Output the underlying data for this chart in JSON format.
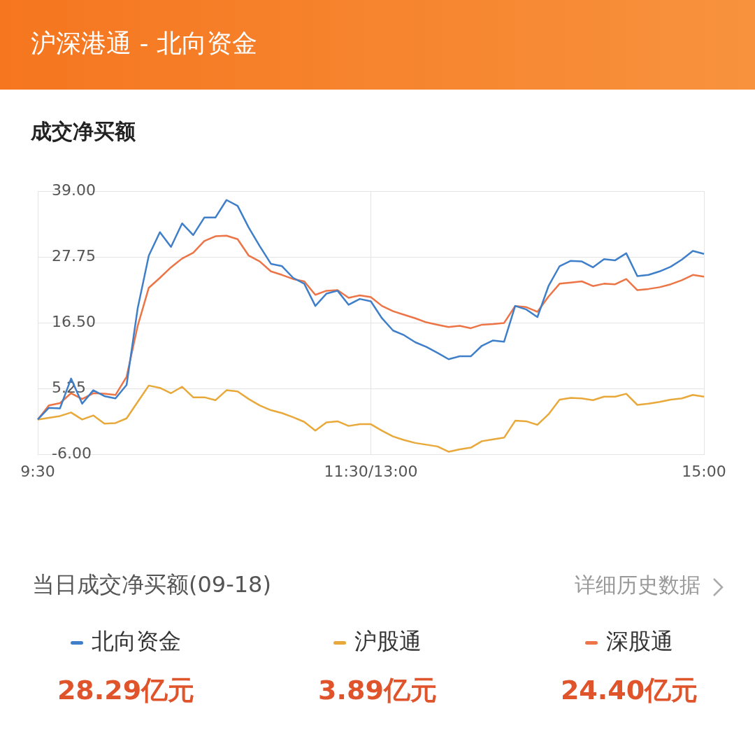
{
  "chart_data": {
    "type": "line",
    "title": "沪深港通 - 北向资金",
    "subtitle": "成交净买额",
    "annotations": [
      "当日成交净买额(09-18)",
      "详细历史数据",
      "28.29亿元",
      "3.89亿元",
      "24.40亿元"
    ],
    "categories": [
      "9:30",
      null,
      null,
      null,
      null,
      null,
      null,
      null,
      null,
      null,
      null,
      null,
      null,
      null,
      null,
      null,
      null,
      null,
      null,
      null,
      null,
      null,
      null,
      null,
      null,
      null,
      null,
      null,
      null,
      null,
      "11:30/13:00",
      null,
      null,
      null,
      null,
      null,
      null,
      null,
      null,
      null,
      null,
      null,
      null,
      null,
      null,
      null,
      null,
      null,
      null,
      null,
      null,
      null,
      null,
      null,
      null,
      null,
      null,
      null,
      null,
      null,
      "15:00"
    ],
    "ylim": [
      -6,
      39
    ],
    "yticks": [
      {
        "value": -6,
        "label": "-6.00"
      },
      {
        "value": 5.25,
        "label": "5.25"
      },
      {
        "value": 16.5,
        "label": "16.50"
      },
      {
        "value": 27.75,
        "label": "27.75"
      },
      {
        "value": 39,
        "label": "39.00"
      }
    ],
    "grid": true,
    "legend": "bottom",
    "line_style": "solid",
    "series": [
      {
        "name": "北向资金",
        "color": "#3f7fc9",
        "values": [
          0.0,
          2.0,
          1.9,
          7.0,
          2.7,
          5.0,
          4.0,
          3.6,
          5.9,
          19.0,
          28.0,
          32.0,
          29.5,
          33.5,
          31.5,
          34.5,
          34.5,
          37.5,
          36.5,
          32.8,
          29.6,
          26.6,
          26.2,
          24.2,
          23.2,
          19.4,
          21.5,
          22.0,
          19.6,
          20.6,
          20.2,
          17.3,
          15.2,
          14.4,
          13.2,
          12.4,
          11.4,
          10.3,
          10.8,
          10.8,
          12.6,
          13.5,
          13.3,
          19.4,
          18.8,
          17.5,
          22.8,
          26.2,
          27.1,
          27.0,
          26.0,
          27.4,
          27.2,
          28.4,
          24.5,
          24.7,
          25.3,
          26.1,
          27.3,
          28.8,
          28.3
        ]
      },
      {
        "name": "沪股通",
        "color": "#e8a93a",
        "values": [
          0.0,
          0.3,
          0.6,
          1.2,
          0.0,
          0.7,
          -0.7,
          -0.6,
          0.2,
          3.0,
          5.8,
          5.4,
          4.5,
          5.6,
          3.8,
          3.8,
          3.3,
          5.0,
          4.8,
          3.5,
          2.4,
          1.6,
          1.1,
          0.4,
          -0.4,
          -1.9,
          -0.5,
          -0.3,
          -1.1,
          -0.8,
          -0.8,
          -1.9,
          -2.9,
          -3.5,
          -4.0,
          -4.3,
          -4.6,
          -5.5,
          -5.1,
          -4.8,
          -3.7,
          -3.4,
          -3.1,
          -0.2,
          -0.3,
          -0.9,
          0.9,
          3.4,
          3.7,
          3.6,
          3.3,
          3.9,
          3.9,
          4.4,
          2.5,
          2.7,
          3.0,
          3.4,
          3.6,
          4.2,
          3.9
        ]
      },
      {
        "name": "深股通",
        "color": "#ec7446",
        "values": [
          0.0,
          2.4,
          2.8,
          4.5,
          3.5,
          4.5,
          4.4,
          4.2,
          7.3,
          16.0,
          22.5,
          24.2,
          26.0,
          27.5,
          28.5,
          30.5,
          31.3,
          31.4,
          30.8,
          28.0,
          27.0,
          25.3,
          24.7,
          24.0,
          23.6,
          21.3,
          22.0,
          22.1,
          20.8,
          21.2,
          20.9,
          19.4,
          18.5,
          17.9,
          17.3,
          16.6,
          16.2,
          15.8,
          16.0,
          15.6,
          16.2,
          16.3,
          16.5,
          19.4,
          19.2,
          18.4,
          21.0,
          23.2,
          23.4,
          23.6,
          22.8,
          23.2,
          23.1,
          24.0,
          22.1,
          22.3,
          22.6,
          23.1,
          23.8,
          24.7,
          24.4
        ]
      }
    ]
  }
}
